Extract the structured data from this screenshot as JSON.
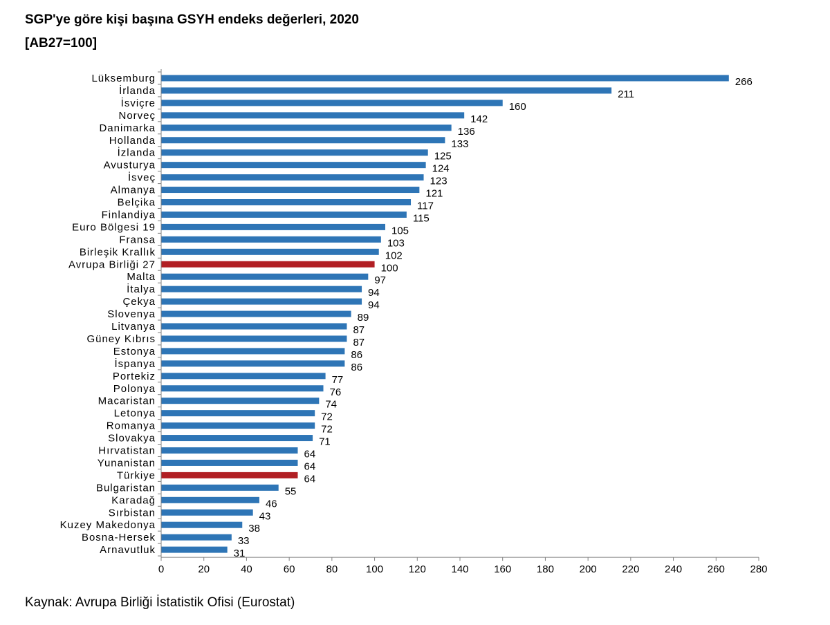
{
  "title": "SGP'ye göre kişi başına GSYH endeks değerleri, 2020",
  "subtitle": "[AB27=100]",
  "source": "Kaynak: Avrupa Birliği İstatistik Ofisi (Eurostat)",
  "colors": {
    "bar": "#2e75b6",
    "highlight": "#b11f24",
    "axis": "#808080"
  },
  "chart_data": {
    "type": "bar",
    "orientation": "horizontal",
    "title": "SGP'ye göre kişi başına GSYH endeks değerleri, 2020",
    "subtitle": "[AB27=100]",
    "xlim": [
      0,
      280
    ],
    "xticks": [
      0,
      20,
      40,
      60,
      80,
      100,
      120,
      140,
      160,
      180,
      200,
      220,
      240,
      260,
      280
    ],
    "grid": false,
    "categories": [
      "Lüksemburg",
      "İrlanda",
      "İsviçre",
      "Norveç",
      "Danimarka",
      "Hollanda",
      "İzlanda",
      "Avusturya",
      "İsveç",
      "Almanya",
      "Belçika",
      "Finlandiya",
      "Euro Bölgesi 19",
      "Fransa",
      "Birleşik Krallık",
      "Avrupa Birliği 27",
      "Malta",
      "İtalya",
      "Çekya",
      "Slovenya",
      "Litvanya",
      "Güney Kıbrıs",
      "Estonya",
      "İspanya",
      "Portekiz",
      "Polonya",
      "Macaristan",
      "Letonya",
      "Romanya",
      "Slovakya",
      "Hırvatistan",
      "Yunanistan",
      "Türkiye",
      "Bulgaristan",
      "Karadağ",
      "Sırbistan",
      "Kuzey Makedonya",
      "Bosna-Hersek",
      "Arnavutluk"
    ],
    "values": [
      266,
      211,
      160,
      142,
      136,
      133,
      125,
      124,
      123,
      121,
      117,
      115,
      105,
      103,
      102,
      100,
      97,
      94,
      94,
      89,
      87,
      87,
      86,
      86,
      77,
      76,
      74,
      72,
      72,
      71,
      64,
      64,
      64,
      55,
      46,
      43,
      38,
      33,
      31
    ],
    "highlighted": [
      "Avrupa Birliği 27",
      "Türkiye"
    ]
  }
}
